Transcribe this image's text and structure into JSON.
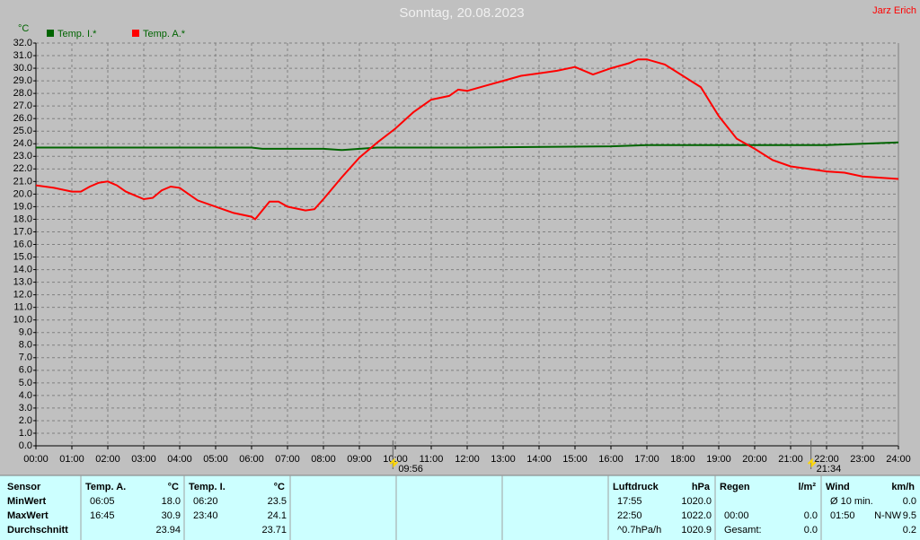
{
  "chart_data": {
    "type": "line",
    "title": "Sonntag, 20.08.2023",
    "author": "Jarz Erich",
    "y_label": "°C",
    "xlim": [
      0,
      24
    ],
    "ylim": [
      0,
      32
    ],
    "grid": true,
    "legend": "top-left",
    "xticks": [
      {
        "value": 0,
        "label": "00:00"
      },
      {
        "value": 1,
        "label": "01:00"
      },
      {
        "value": 2,
        "label": "02:00"
      },
      {
        "value": 3,
        "label": "03:00"
      },
      {
        "value": 4,
        "label": "04:00"
      },
      {
        "value": 5,
        "label": "05:00"
      },
      {
        "value": 6,
        "label": "06:00"
      },
      {
        "value": 7,
        "label": "07:00"
      },
      {
        "value": 8,
        "label": "08:00"
      },
      {
        "value": 9,
        "label": "09:00"
      },
      {
        "value": 10,
        "label": "10:00"
      },
      {
        "value": 11,
        "label": "11:00"
      },
      {
        "value": 12,
        "label": "12:00"
      },
      {
        "value": 13,
        "label": "13:00"
      },
      {
        "value": 14,
        "label": "14:00"
      },
      {
        "value": 15,
        "label": "15:00"
      },
      {
        "value": 16,
        "label": "16:00"
      },
      {
        "value": 17,
        "label": "17:00"
      },
      {
        "value": 18,
        "label": "18:00"
      },
      {
        "value": 19,
        "label": "19:00"
      },
      {
        "value": 20,
        "label": "20:00"
      },
      {
        "value": 21,
        "label": "21:00"
      },
      {
        "value": 22,
        "label": "22:00"
      },
      {
        "value": 23,
        "label": "23:00"
      },
      {
        "value": 24,
        "label": "24:00"
      }
    ],
    "yticks": [
      {
        "value": 0,
        "label": "0.0"
      },
      {
        "value": 1,
        "label": "1.0"
      },
      {
        "value": 2,
        "label": "2.0"
      },
      {
        "value": 3,
        "label": "3.0"
      },
      {
        "value": 4,
        "label": "4.0"
      },
      {
        "value": 5,
        "label": "5.0"
      },
      {
        "value": 6,
        "label": "6.0"
      },
      {
        "value": 7,
        "label": "7.0"
      },
      {
        "value": 8,
        "label": "8.0"
      },
      {
        "value": 9,
        "label": "9.0"
      },
      {
        "value": 10,
        "label": "10.0"
      },
      {
        "value": 11,
        "label": "11.0"
      },
      {
        "value": 12,
        "label": "12.0"
      },
      {
        "value": 13,
        "label": "13.0"
      },
      {
        "value": 14,
        "label": "14.0"
      },
      {
        "value": 15,
        "label": "15.0"
      },
      {
        "value": 16,
        "label": "16.0"
      },
      {
        "value": 17,
        "label": "17.0"
      },
      {
        "value": 18,
        "label": "18.0"
      },
      {
        "value": 19,
        "label": "19.0"
      },
      {
        "value": 20,
        "label": "20.0"
      },
      {
        "value": 21,
        "label": "21.0"
      },
      {
        "value": 22,
        "label": "22.0"
      },
      {
        "value": 23,
        "label": "23.0"
      },
      {
        "value": 24,
        "label": "24.0"
      },
      {
        "value": 25,
        "label": "25.0"
      },
      {
        "value": 26,
        "label": "26.0"
      },
      {
        "value": 27,
        "label": "27.0"
      },
      {
        "value": 28,
        "label": "28.0"
      },
      {
        "value": 29,
        "label": "29.0"
      },
      {
        "value": 30,
        "label": "30.0"
      },
      {
        "value": 31,
        "label": "31.0"
      },
      {
        "value": 32,
        "label": "32.0"
      }
    ],
    "annotations": [
      {
        "x": 9.933,
        "label": "09:56"
      },
      {
        "x": 21.567,
        "label": "21:34"
      }
    ],
    "series": [
      {
        "name": "Temp. I.*",
        "color": "#006400",
        "x": [
          0,
          6,
          6.3,
          8,
          8.5,
          9.5,
          12,
          16,
          17,
          18,
          20,
          22,
          23,
          24
        ],
        "values": [
          23.7,
          23.7,
          23.6,
          23.6,
          23.5,
          23.7,
          23.7,
          23.8,
          23.9,
          23.9,
          23.9,
          23.9,
          24.0,
          24.1
        ]
      },
      {
        "name": "Temp. A.*",
        "color": "#ff0000",
        "x": [
          0,
          0.5,
          1,
          1.25,
          1.5,
          1.75,
          2,
          2.25,
          2.5,
          2.75,
          3,
          3.25,
          3.5,
          3.75,
          4,
          4.25,
          4.5,
          5,
          5.5,
          6,
          6.1,
          6.5,
          6.75,
          7,
          7.5,
          7.75,
          8,
          8.5,
          9,
          9.5,
          10,
          10.5,
          11,
          11.5,
          11.75,
          12,
          12.5,
          13,
          13.5,
          14,
          14.5,
          15,
          15.5,
          16,
          16.5,
          16.75,
          17,
          17.5,
          18,
          18.5,
          19,
          19.5,
          20,
          20.5,
          21,
          21.5,
          22,
          22.5,
          23,
          23.5,
          24
        ],
        "values": [
          20.7,
          20.5,
          20.2,
          20.2,
          20.6,
          20.9,
          21.0,
          20.7,
          20.2,
          19.9,
          19.6,
          19.7,
          20.3,
          20.6,
          20.5,
          20.0,
          19.5,
          19.0,
          18.5,
          18.2,
          18.0,
          19.4,
          19.4,
          19.0,
          18.7,
          18.8,
          19.6,
          21.3,
          22.9,
          24.1,
          25.2,
          26.5,
          27.5,
          27.8,
          28.3,
          28.2,
          28.6,
          29.0,
          29.4,
          29.6,
          29.8,
          30.1,
          29.5,
          30.0,
          30.4,
          30.7,
          30.7,
          30.3,
          29.4,
          28.5,
          26.2,
          24.4,
          23.6,
          22.7,
          22.2,
          22.0,
          21.8,
          21.7,
          21.4,
          21.3,
          21.2
        ]
      }
    ]
  },
  "table": {
    "panels": [
      {
        "header": [
          "Sensor"
        ],
        "rows": [
          {
            "label": "MinWert"
          },
          {
            "label": "MaxWert"
          },
          {
            "label": "Durchschnitt"
          }
        ]
      },
      {
        "header": [
          "Temp. A.",
          "°C"
        ],
        "rows": [
          {
            "time": "06:05",
            "value": "18.0"
          },
          {
            "time": "16:45",
            "value": "30.9"
          },
          {
            "value": "23.94"
          }
        ]
      },
      {
        "header": [
          "Temp. I.",
          "°C"
        ],
        "rows": [
          {
            "time": "06:20",
            "value": "23.5"
          },
          {
            "time": "23:40",
            "value": "24.1"
          },
          {
            "value": "23.71"
          }
        ]
      },
      {
        "header": [
          "Luftdruck",
          "hPa"
        ],
        "rows": [
          {
            "time": "17:55",
            "value": "1020.0"
          },
          {
            "time": "22:50",
            "value": "1022.0"
          },
          {
            "time": "^0.7hPa/h",
            "value": "1020.9"
          }
        ]
      },
      {
        "header": [
          "Regen",
          "l/m²"
        ],
        "rows": [
          null,
          {
            "time": "00:00",
            "value": "0.0"
          },
          {
            "time": "Gesamt:",
            "value": "0.0"
          }
        ]
      },
      {
        "header": [
          "Wind",
          "km/h"
        ],
        "rows": [
          {
            "time": "Ø 10 min.",
            "value": "0.0"
          },
          {
            "time": "01:50",
            "extra": "N-NW",
            "value": "9.5"
          },
          {
            "value": "0.2"
          }
        ]
      }
    ]
  }
}
